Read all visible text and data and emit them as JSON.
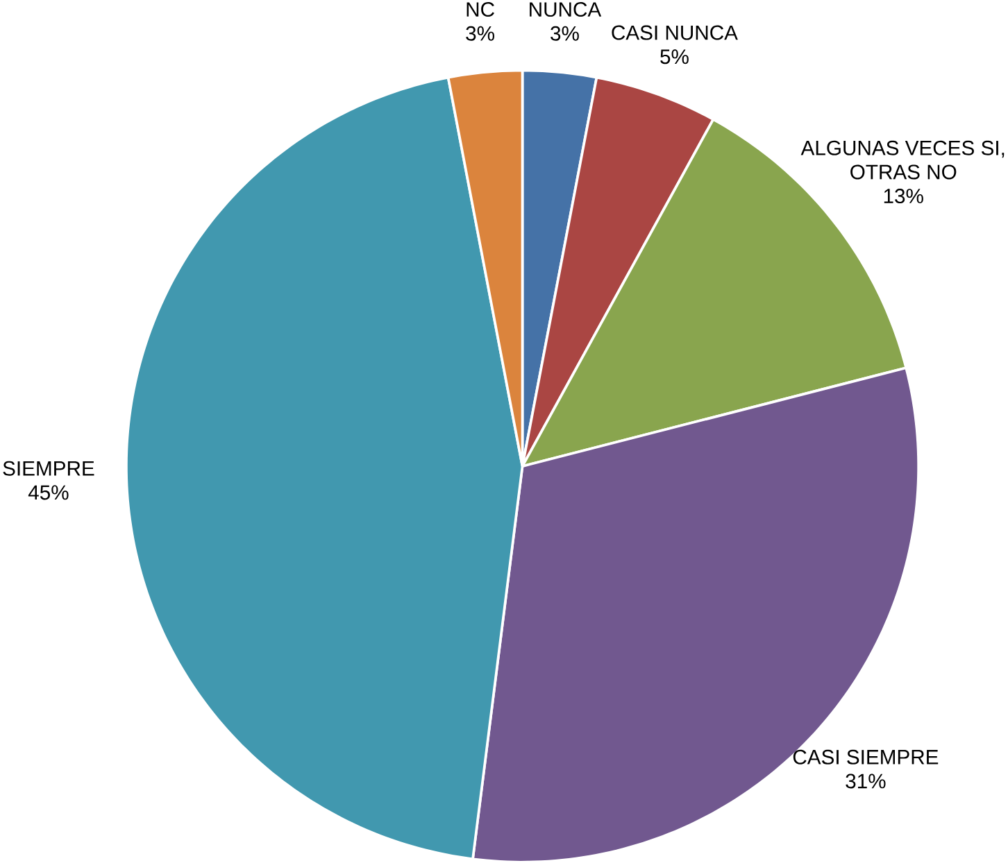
{
  "chart_data": {
    "type": "pie",
    "categories": [
      "NUNCA",
      "CASI NUNCA",
      "ALGUNAS VECES SI, OTRAS NO",
      "CASI SIEMPRE",
      "SIEMPRE",
      "NC"
    ],
    "values": [
      3,
      5,
      13,
      31,
      45,
      3
    ],
    "value_labels": [
      "3%",
      "5%",
      "13%",
      "31%",
      "45%",
      "3%"
    ],
    "colors": [
      "#4572a7",
      "#aa4643",
      "#89a54e",
      "#71588f",
      "#4198af",
      "#db843d"
    ]
  }
}
